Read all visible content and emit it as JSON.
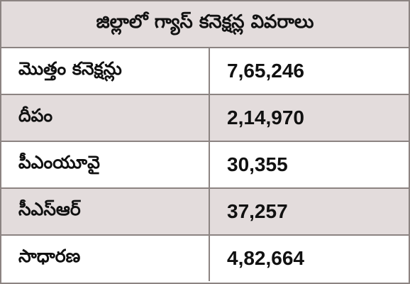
{
  "table": {
    "title": "జిల్లాలో గ్యాస్‌ కనెక్షన్ల వివరాలు",
    "rows": [
      {
        "label": "మొత్తం కనెక్షన్లు",
        "value": "7,65,246",
        "shaded": false
      },
      {
        "label": "దీపం",
        "value": "2,14,970",
        "shaded": true
      },
      {
        "label": "పీఎంయూవై",
        "value": "30,355",
        "shaded": false
      },
      {
        "label": "సీఎస్‌ఆర్‌",
        "value": "37,257",
        "shaded": true
      },
      {
        "label": "సాధారణ",
        "value": "4,82,664",
        "shaded": false
      }
    ]
  },
  "colors": {
    "shade": "#e3dcdc",
    "border": "#8c8482",
    "text": "#111111"
  }
}
